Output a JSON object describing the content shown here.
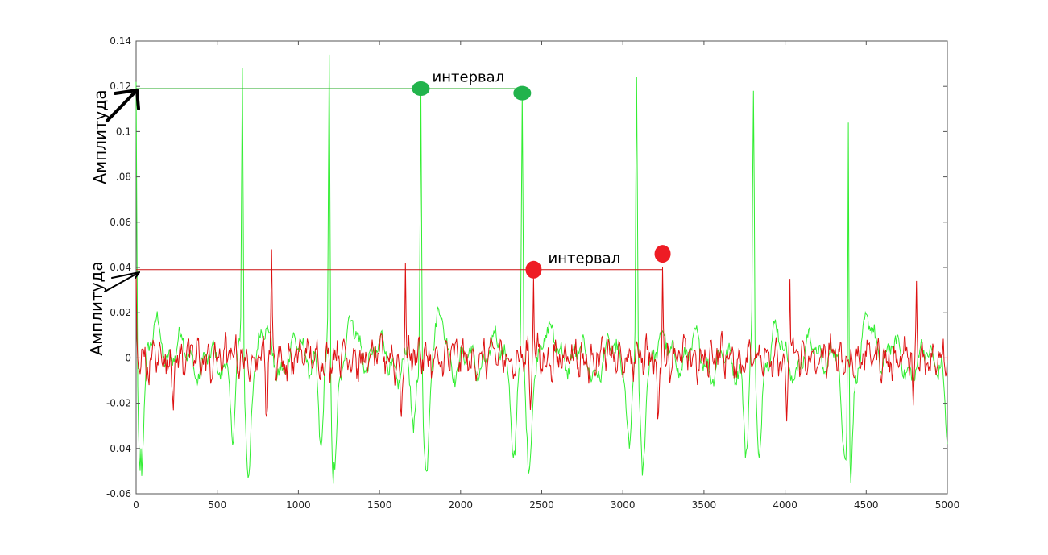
{
  "chart_data": {
    "type": "line",
    "xlim": [
      0,
      5000
    ],
    "ylim": [
      -0.06,
      0.14
    ],
    "x_ticks": [
      0,
      500,
      1000,
      1500,
      2000,
      2500,
      3000,
      3500,
      4000,
      4500,
      5000
    ],
    "x_tick_labels": [
      "0",
      "500",
      "1000",
      "1500",
      "2000",
      "2500",
      "3000",
      "3500",
      "4000",
      "4500",
      "5000"
    ],
    "y_ticks": [
      -0.06,
      -0.04,
      -0.02,
      0,
      0.02,
      0.04,
      0.06,
      0.08,
      0.1,
      0.12,
      0.14
    ],
    "y_tick_labels": [
      "-0.06",
      "-0.04",
      "-0.02",
      "0",
      "0.02",
      "0.04",
      "0.06",
      ".08",
      "0.1",
      "0.12",
      "0.14"
    ],
    "ylabels": [
      "Амплитуда",
      "Амплитуда"
    ],
    "grid": false,
    "colors": {
      "green": "#33ee33",
      "red": "#dd1111",
      "green_marker": "#22b34c",
      "red_marker": "#ee1c24"
    },
    "series": [
      {
        "color": "green",
        "peaks": [
          [
            0,
            0.122
          ],
          [
            655,
            0.128
          ],
          [
            1190,
            0.134
          ],
          [
            1755,
            0.118
          ],
          [
            2380,
            0.117
          ],
          [
            3085,
            0.124
          ],
          [
            3805,
            0.118
          ],
          [
            4390,
            0.104
          ]
        ],
        "troughs": [
          [
            30,
            -0.04
          ],
          [
            600,
            -0.037
          ],
          [
            690,
            -0.053
          ],
          [
            1140,
            -0.039
          ],
          [
            1220,
            -0.046
          ],
          [
            1710,
            -0.033
          ],
          [
            1790,
            -0.05
          ],
          [
            2330,
            -0.041
          ],
          [
            2420,
            -0.051
          ],
          [
            3040,
            -0.04
          ],
          [
            3120,
            -0.052
          ],
          [
            3760,
            -0.041
          ],
          [
            3840,
            -0.044
          ],
          [
            4360,
            -0.039
          ],
          [
            4400,
            -0.046
          ],
          [
            5000,
            -0.038
          ]
        ]
      },
      {
        "color": "red",
        "peaks": [
          [
            0,
            0.038
          ],
          [
            835,
            0.048
          ],
          [
            1660,
            0.042
          ],
          [
            2450,
            0.036
          ],
          [
            3245,
            0.04
          ],
          [
            4030,
            0.035
          ],
          [
            4810,
            0.034
          ]
        ],
        "troughs": [
          [
            80,
            -0.012
          ],
          [
            225,
            -0.017
          ],
          [
            805,
            -0.026
          ],
          [
            1635,
            -0.026
          ],
          [
            2430,
            -0.023
          ],
          [
            3215,
            -0.027
          ],
          [
            4010,
            -0.028
          ],
          [
            4790,
            -0.021
          ]
        ]
      }
    ],
    "annotations": [
      {
        "text": "интервал",
        "color": "green",
        "ref_line_y": 0.119,
        "ref_line_x": [
          0,
          2380
        ],
        "markers": [
          [
            1755,
            0.119
          ],
          [
            2380,
            0.117
          ]
        ],
        "label_pos": [
          1825,
          0.122
        ]
      },
      {
        "text": "интервал",
        "color": "red",
        "ref_line_y": 0.039,
        "ref_line_x": [
          0,
          3245
        ],
        "markers": [
          [
            2450,
            0.039
          ],
          [
            3245,
            0.046
          ]
        ],
        "label_pos": [
          2540,
          0.042
        ]
      }
    ]
  }
}
